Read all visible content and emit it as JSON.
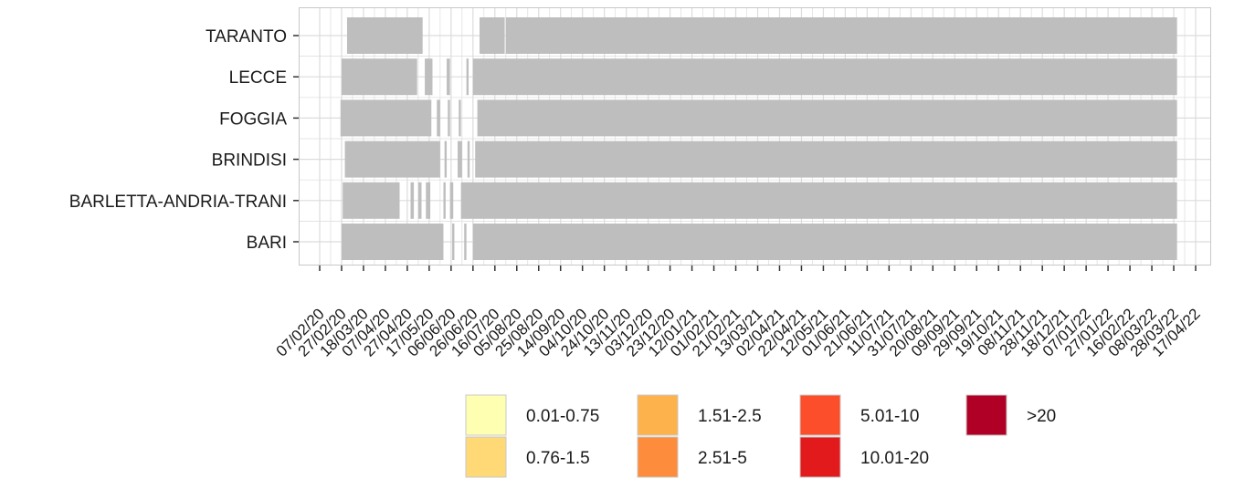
{
  "chart_data": {
    "type": "heatmap",
    "title": "",
    "xlabel": "",
    "ylabel": "",
    "grid": true,
    "legend_position": "bottom",
    "rows": [
      "TARANTO",
      "LECCE",
      "FOGGIA",
      "BRINDISI",
      "BARLETTA-ANDRIA-TRANI",
      "BARI"
    ],
    "x_ticks": [
      "07/02/20",
      "27/02/20",
      "18/03/20",
      "07/04/20",
      "27/04/20",
      "17/05/20",
      "06/06/20",
      "26/06/20",
      "16/07/20",
      "05/08/20",
      "25/08/20",
      "14/09/20",
      "04/10/20",
      "24/10/20",
      "13/11/20",
      "03/12/20",
      "23/12/20",
      "12/01/21",
      "01/02/21",
      "21/02/21",
      "13/03/21",
      "02/04/21",
      "22/04/21",
      "12/05/21",
      "01/06/21",
      "21/06/21",
      "11/07/21",
      "31/07/21",
      "20/08/21",
      "09/09/21",
      "29/09/21",
      "19/10/21",
      "08/11/21",
      "28/11/21",
      "18/12/21",
      "07/01/22",
      "27/01/22",
      "16/02/22",
      "08/03/22",
      "28/03/22",
      "17/04/22"
    ],
    "date_range": [
      "07/02/20",
      "17/04/22"
    ],
    "cell_color_no_data": "#bebebe",
    "cell_presence": {
      "TARANTO": [
        [
          "03/03/20",
          "11/05/20"
        ],
        [
          "02/07/20",
          "25/07/20"
        ],
        [
          "26/07/20",
          "31/03/22"
        ]
      ],
      "LECCE": [
        [
          "27/02/20",
          "06/05/20"
        ],
        [
          "13/05/20",
          "20/05/20"
        ],
        [
          "02/06/20",
          "05/06/20"
        ],
        [
          "20/06/20",
          "22/06/20"
        ],
        [
          "26/06/20",
          "17/07/20"
        ],
        [
          "17/07/20",
          "31/03/22"
        ]
      ],
      "FOGGIA": [
        [
          "26/02/20",
          "19/05/20"
        ],
        [
          "24/05/20",
          "27/05/20"
        ],
        [
          "03/06/20",
          "05/06/20"
        ],
        [
          "13/06/20",
          "15/06/20"
        ],
        [
          "30/06/20",
          "31/03/22"
        ]
      ],
      "BRINDISI": [
        [
          "01/03/20",
          "27/05/20"
        ],
        [
          "31/05/20",
          "02/06/20"
        ],
        [
          "12/06/20",
          "16/06/20"
        ],
        [
          "21/06/20",
          "23/06/20"
        ],
        [
          "28/06/20",
          "31/03/22"
        ]
      ],
      "BARLETTA-ANDRIA-TRANI": [
        [
          "28/02/20",
          "20/04/20"
        ],
        [
          "30/04/20",
          "03/05/20"
        ],
        [
          "07/05/20",
          "10/05/20"
        ],
        [
          "14/05/20",
          "18/05/20"
        ],
        [
          "30/05/20",
          "01/06/20"
        ],
        [
          "05/06/20",
          "08/06/20"
        ],
        [
          "15/06/20",
          "31/03/22"
        ]
      ],
      "BARI": [
        [
          "27/02/20",
          "30/05/20"
        ],
        [
          "07/06/20",
          "09/06/20"
        ],
        [
          "18/06/20",
          "20/06/20"
        ],
        [
          "26/06/20",
          "31/03/22"
        ]
      ]
    },
    "legend": [
      {
        "label": "0.01-0.75",
        "color": "#ffffb2"
      },
      {
        "label": "0.76-1.5",
        "color": "#fed976"
      },
      {
        "label": "1.51-2.5",
        "color": "#feb24c"
      },
      {
        "label": "2.51-5",
        "color": "#fd8d3c"
      },
      {
        "label": "5.01-10",
        "color": "#fc4e2a"
      },
      {
        "label": "10.01-20",
        "color": "#e31a1c"
      },
      {
        "label": ">20",
        "color": "#b10026"
      }
    ],
    "gridline_color": "#dcdcdc",
    "panel_border_color": "#c8c8c8"
  }
}
